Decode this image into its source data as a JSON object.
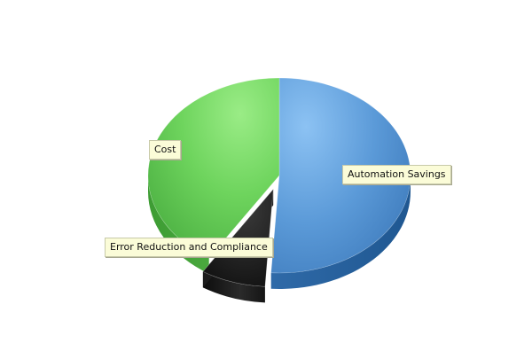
{
  "chart_data": {
    "type": "pie",
    "title": "",
    "slices": [
      {
        "label": "Automation Savings",
        "value": 51,
        "color": "#4f8fce",
        "exploded": false
      },
      {
        "label": "Error Reduction and Compliance",
        "value": 8,
        "color": "#1a1a1a",
        "exploded": true
      },
      {
        "label": "Cost",
        "value": 41,
        "color": "#6fd35f",
        "exploded": false
      }
    ],
    "legend": "none",
    "style": "3d"
  }
}
